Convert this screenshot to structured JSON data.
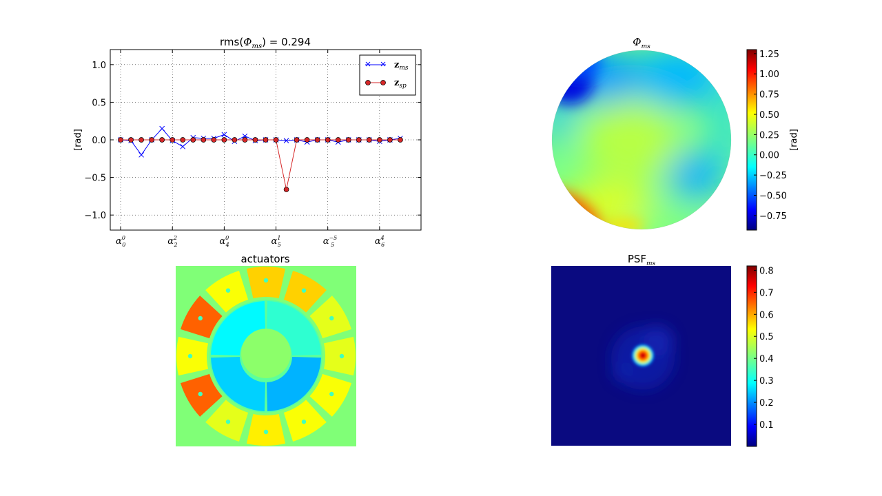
{
  "chart_data": [
    {
      "type": "line",
      "title_text": "rms(",
      "title_phi": "Φ",
      "title_sub": "ms",
      "title_value": ") = 0.294",
      "xlabel": "",
      "ylabel": "[rad]",
      "xlim": [
        -1,
        29
      ],
      "ylim": [
        -1.2,
        1.2
      ],
      "yticks": [
        1.0,
        0.5,
        0.0,
        -0.5,
        -1.0
      ],
      "ytick_labels": [
        "1.0",
        "0.5",
        "0.0",
        "−0.5",
        "−1.0"
      ],
      "xticks": [
        {
          "x": 0,
          "base": "α",
          "sub": "0",
          "sup": "0"
        },
        {
          "x": 5,
          "base": "α",
          "sub": "2",
          "sup": "2"
        },
        {
          "x": 10,
          "base": "α",
          "sub": "4",
          "sup": "0"
        },
        {
          "x": 15,
          "base": "α",
          "sub": "5",
          "sup": "1"
        },
        {
          "x": 20,
          "base": "α",
          "sub": "5",
          "sup": "−5"
        },
        {
          "x": 25,
          "base": "α",
          "sub": "6",
          "sup": "4"
        }
      ],
      "grid": true,
      "legend_position": "top-right",
      "series": [
        {
          "name": "z",
          "name_sub": "ms",
          "color": "#0000ff",
          "marker": "x",
          "x": [
            0,
            1,
            2,
            3,
            4,
            5,
            6,
            7,
            8,
            9,
            10,
            11,
            12,
            13,
            14,
            15,
            16,
            17,
            18,
            19,
            20,
            21,
            22,
            23,
            24,
            25,
            26,
            27
          ],
          "values": [
            0.0,
            -0.01,
            -0.2,
            0.0,
            0.15,
            -0.01,
            -0.09,
            0.03,
            0.02,
            0.02,
            0.07,
            -0.02,
            0.05,
            -0.01,
            0.0,
            0.0,
            -0.01,
            0.0,
            -0.03,
            0.0,
            0.0,
            -0.03,
            0.0,
            0.0,
            0.0,
            -0.02,
            0.0,
            0.02
          ]
        },
        {
          "name": "z",
          "name_sub": "sp",
          "color": "#d62728",
          "marker": "o",
          "x": [
            0,
            1,
            2,
            3,
            4,
            5,
            6,
            7,
            8,
            9,
            10,
            11,
            12,
            13,
            14,
            15,
            16,
            17,
            18,
            19,
            20,
            21,
            22,
            23,
            24,
            25,
            26,
            27
          ],
          "values": [
            0,
            0,
            0,
            0,
            0,
            0,
            0,
            0,
            0,
            0,
            0,
            0,
            0,
            0,
            0,
            0,
            -0.66,
            0,
            0,
            0,
            0,
            0,
            0,
            0,
            0,
            0,
            0,
            0
          ]
        }
      ]
    },
    {
      "type": "heatmap",
      "title": "Φ",
      "title_sub": "ms",
      "colorbar_label": "[rad]",
      "colorbar_range": [
        -0.93,
        1.3
      ],
      "colorbar_ticks": [
        1.25,
        1.0,
        0.75,
        0.5,
        0.25,
        0.0,
        -0.25,
        -0.5,
        -0.75
      ],
      "colorbar_tick_labels": [
        "1.25",
        "1.00",
        "0.75",
        "0.50",
        "0.25",
        "0.00",
        "−0.25",
        "−0.50",
        "−0.75"
      ],
      "colormap": "jet",
      "shape": "circular-pupil",
      "features": [
        {
          "kind": "peak",
          "at": "center",
          "value": 0.35
        },
        {
          "kind": "peak",
          "at": "bottom-left edge",
          "value": 1.3
        },
        {
          "kind": "trough",
          "at": "top-left edge",
          "value": -0.9
        },
        {
          "kind": "trough",
          "at": "top-center",
          "value": -0.45
        },
        {
          "kind": "trough",
          "at": "right",
          "value": -0.5
        }
      ]
    },
    {
      "type": "heatmap",
      "title": "actuators",
      "colormap": "jet",
      "background_value": 0.42,
      "outer_ring": [
        0.67,
        0.67,
        0.6,
        0.6,
        0.62,
        0.62,
        0.64,
        0.6,
        0.78,
        0.62,
        0.78,
        0.62
      ],
      "middle_ring": [
        0.42,
        0.3,
        0.33,
        0.37
      ],
      "center_value": 0.43,
      "actuator_count": 17
    },
    {
      "type": "heatmap",
      "title": "PSF",
      "title_sub": "ms",
      "colorbar_range": [
        0.0,
        0.82
      ],
      "colorbar_ticks": [
        0.8,
        0.7,
        0.6,
        0.5,
        0.4,
        0.3,
        0.2,
        0.1
      ],
      "colorbar_tick_labels": [
        "0.8",
        "0.7",
        "0.6",
        "0.5",
        "0.4",
        "0.3",
        "0.2",
        "0.1"
      ],
      "colormap": "jet",
      "peak_value": 0.82,
      "peak_position": "slightly left of center"
    }
  ],
  "colors": {
    "line_ms": "#0000ff",
    "line_sp": "#d62728",
    "grid": "#b0b0b0"
  }
}
